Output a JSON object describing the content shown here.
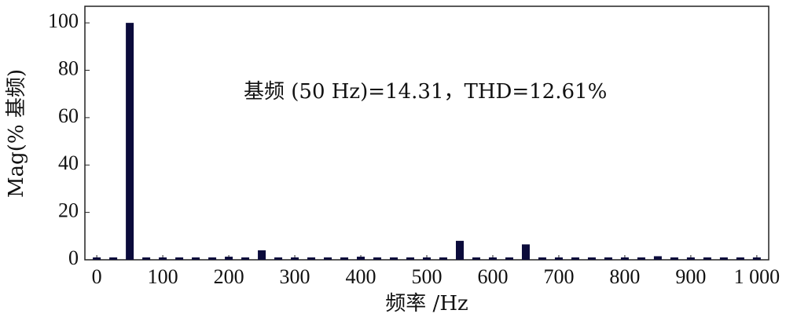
{
  "chart_data": {
    "type": "bar",
    "annotation": "基频 (50 Hz)=14.31，THD=12.61%",
    "x_label": "频率 /Hz",
    "y_label": "Mag(% 基频)",
    "x": [
      0,
      25,
      50,
      75,
      100,
      125,
      150,
      175,
      200,
      225,
      250,
      275,
      300,
      325,
      350,
      375,
      400,
      425,
      450,
      475,
      500,
      525,
      550,
      575,
      600,
      625,
      650,
      675,
      700,
      725,
      750,
      775,
      800,
      825,
      850,
      875,
      900,
      925,
      950,
      975,
      1000
    ],
    "values": [
      1,
      1,
      100,
      1,
      1,
      1,
      1,
      1,
      1.3,
      1,
      4,
      1,
      1,
      1,
      1,
      1,
      1.3,
      1,
      1,
      1,
      1,
      1,
      8,
      1,
      1,
      1,
      6.5,
      1,
      1,
      1,
      1,
      1,
      1,
      1,
      1.5,
      1,
      1,
      1,
      1,
      1,
      1
    ],
    "color": "#0b0b3b",
    "xlim": [
      -18,
      1018
    ],
    "ylim": [
      0,
      107
    ],
    "xticks": [
      0,
      100,
      200,
      300,
      400,
      500,
      600,
      700,
      800,
      900,
      {
        "value": 1000,
        "label": "1 000"
      }
    ],
    "yticks": [
      0,
      20,
      40,
      60,
      80,
      100
    ],
    "grid": false
  }
}
